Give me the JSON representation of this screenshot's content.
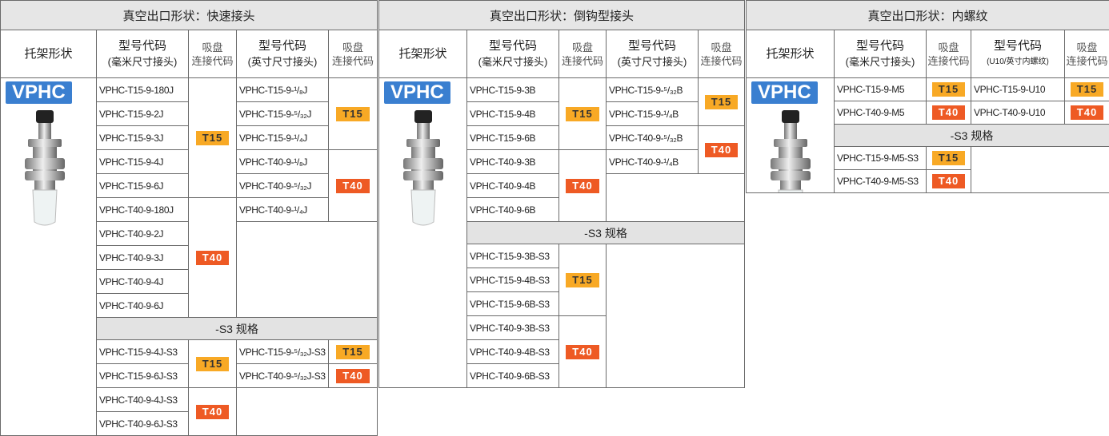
{
  "tables": [
    {
      "title": "真空出口形状：快速接头",
      "bracket_header": "托架形状",
      "model_headers": [
        {
          "label": "型号代码",
          "sub": "(毫米尺寸接头)"
        },
        {
          "label": "型号代码",
          "sub": "(英寸尺寸接头)"
        }
      ],
      "code_header": [
        "吸盘",
        "连接代码"
      ],
      "logo": "VPHC",
      "sections": [
        {
          "mm": [
            {
              "code": "T15",
              "color": "#f8a925",
              "text_color": "#333333",
              "models": [
                "VPHC-T15-9-180J",
                "VPHC-T15-9-2J",
                "VPHC-T15-9-3J",
                "VPHC-T15-9-4J",
                "VPHC-T15-9-6J"
              ]
            },
            {
              "code": "T40",
              "color": "#ee5a24",
              "text_color": "#ffffff",
              "models": [
                "VPHC-T40-9-180J",
                "VPHC-T40-9-2J",
                "VPHC-T40-9-3J",
                "VPHC-T40-9-4J",
                "VPHC-T40-9-6J"
              ]
            }
          ],
          "inch": [
            {
              "code": "T15",
              "color": "#f8a925",
              "text_color": "#333333",
              "models": [
                "VPHC-T15-9-¹/₈J",
                "VPHC-T15-9-⁵/₃₂J",
                "VPHC-T15-9-¹/₄J"
              ]
            },
            {
              "code": "T40",
              "color": "#ee5a24",
              "text_color": "#ffffff",
              "models": [
                "VPHC-T40-9-¹/₈J",
                "VPHC-T40-9-⁵/₃₂J",
                "VPHC-T40-9-¹/₄J"
              ]
            }
          ]
        },
        {
          "label": "-S3 规格",
          "mm": [
            {
              "code": "T15",
              "color": "#f8a925",
              "text_color": "#333333",
              "models": [
                "VPHC-T15-9-4J-S3",
                "VPHC-T15-9-6J-S3"
              ]
            },
            {
              "code": "T40",
              "color": "#ee5a24",
              "text_color": "#ffffff",
              "models": [
                "VPHC-T40-9-4J-S3",
                "VPHC-T40-9-6J-S3"
              ]
            }
          ],
          "inch": [
            {
              "code": "T15",
              "color": "#f8a925",
              "text_color": "#333333",
              "models": [
                "VPHC-T15-9-⁵/₃₂J-S3"
              ]
            },
            {
              "code": "T40",
              "color": "#ee5a24",
              "text_color": "#ffffff",
              "models": [
                "VPHC-T40-9-⁵/₃₂J-S3"
              ]
            }
          ]
        }
      ]
    },
    {
      "title": "真空出口形状：倒钩型接头",
      "bracket_header": "托架形状",
      "model_headers": [
        {
          "label": "型号代码",
          "sub": "(毫米尺寸接头)"
        },
        {
          "label": "型号代码",
          "sub": "(英寸尺寸接头)"
        }
      ],
      "code_header": [
        "吸盘",
        "连接代码"
      ],
      "logo": "VPHC",
      "sections": [
        {
          "mm": [
            {
              "code": "T15",
              "color": "#f8a925",
              "text_color": "#333333",
              "models": [
                "VPHC-T15-9-3B",
                "VPHC-T15-9-4B",
                "VPHC-T15-9-6B"
              ]
            },
            {
              "code": "T40",
              "color": "#ee5a24",
              "text_color": "#ffffff",
              "models": [
                "VPHC-T40-9-3B",
                "VPHC-T40-9-4B",
                "VPHC-T40-9-6B"
              ]
            }
          ],
          "inch": [
            {
              "code": "T15",
              "color": "#f8a925",
              "text_color": "#333333",
              "models": [
                "VPHC-T15-9-⁵/₃₂B",
                "VPHC-T15-9-¹/₄B"
              ]
            },
            {
              "code": "T40",
              "color": "#ee5a24",
              "text_color": "#ffffff",
              "models": [
                "VPHC-T40-9-⁵/₃₂B",
                "VPHC-T40-9-¹/₄B"
              ]
            }
          ]
        },
        {
          "label": "-S3 规格",
          "mm": [
            {
              "code": "T15",
              "color": "#f8a925",
              "text_color": "#333333",
              "models": [
                "VPHC-T15-9-3B-S3",
                "VPHC-T15-9-4B-S3",
                "VPHC-T15-9-6B-S3"
              ]
            },
            {
              "code": "T40",
              "color": "#ee5a24",
              "text_color": "#ffffff",
              "models": [
                "VPHC-T40-9-3B-S3",
                "VPHC-T40-9-4B-S3",
                "VPHC-T40-9-6B-S3"
              ]
            }
          ],
          "inch": []
        }
      ]
    },
    {
      "title": "真空出口形状：内螺纹",
      "bracket_header": "托架形状",
      "model_headers": [
        {
          "label": "型号代码",
          "sub": "(毫米尺寸接头)"
        },
        {
          "label": "型号代码",
          "sub": "(U10/英寸内螺纹)"
        }
      ],
      "code_header": [
        "吸盘",
        "连接代码"
      ],
      "logo": "VPHC",
      "sections": [
        {
          "mm": [
            {
              "code": "T15",
              "color": "#f8a925",
              "text_color": "#333333",
              "models": [
                "VPHC-T15-9-M5"
              ]
            },
            {
              "code": "T40",
              "color": "#ee5a24",
              "text_color": "#ffffff",
              "models": [
                "VPHC-T40-9-M5"
              ]
            }
          ],
          "inch": [
            {
              "code": "T15",
              "color": "#f8a925",
              "text_color": "#333333",
              "models": [
                "VPHC-T15-9-U10"
              ]
            },
            {
              "code": "T40",
              "color": "#ee5a24",
              "text_color": "#ffffff",
              "models": [
                "VPHC-T40-9-U10"
              ]
            }
          ]
        },
        {
          "label": "-S3 规格",
          "mm": [
            {
              "code": "T15",
              "color": "#f8a925",
              "text_color": "#333333",
              "models": [
                "VPHC-T15-9-M5-S3"
              ]
            },
            {
              "code": "T40",
              "color": "#ee5a24",
              "text_color": "#ffffff",
              "models": [
                "VPHC-T40-9-M5-S3"
              ]
            }
          ],
          "inch": []
        }
      ]
    }
  ]
}
